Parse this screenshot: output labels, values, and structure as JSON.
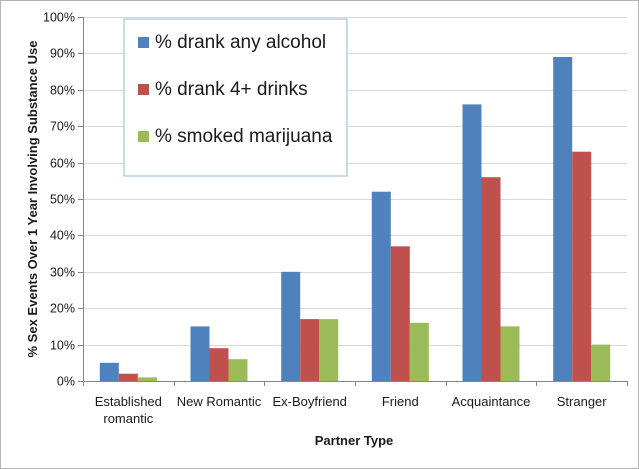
{
  "chart_data": {
    "type": "bar",
    "title": "",
    "xlabel": "Partner Type",
    "ylabel": "% Sex Events Over 1 Year Involving Substance Use",
    "ylim": [
      0,
      100
    ],
    "y_ticks": [
      "0%",
      "10%",
      "20%",
      "30%",
      "40%",
      "50%",
      "60%",
      "70%",
      "80%",
      "90%",
      "100%"
    ],
    "y_tick_values": [
      0,
      10,
      20,
      30,
      40,
      50,
      60,
      70,
      80,
      90,
      100
    ],
    "categories": [
      [
        "Established",
        "romantic"
      ],
      [
        "New Romantic"
      ],
      [
        "Ex-Boyfriend"
      ],
      [
        "Friend"
      ],
      [
        "Acquaintance"
      ],
      [
        "Stranger"
      ]
    ],
    "series": [
      {
        "name": "% drank any alcohol",
        "color": "#4f81bd",
        "values": [
          5,
          15,
          30,
          52,
          76,
          89
        ]
      },
      {
        "name": "% drank 4+ drinks",
        "color": "#c0504d",
        "values": [
          2,
          9,
          17,
          37,
          56,
          63
        ]
      },
      {
        "name": "% smoked marijuana",
        "color": "#9bbb59",
        "values": [
          1,
          6,
          17,
          16,
          15,
          10
        ]
      }
    ],
    "grid": true,
    "legend": "top-left"
  }
}
